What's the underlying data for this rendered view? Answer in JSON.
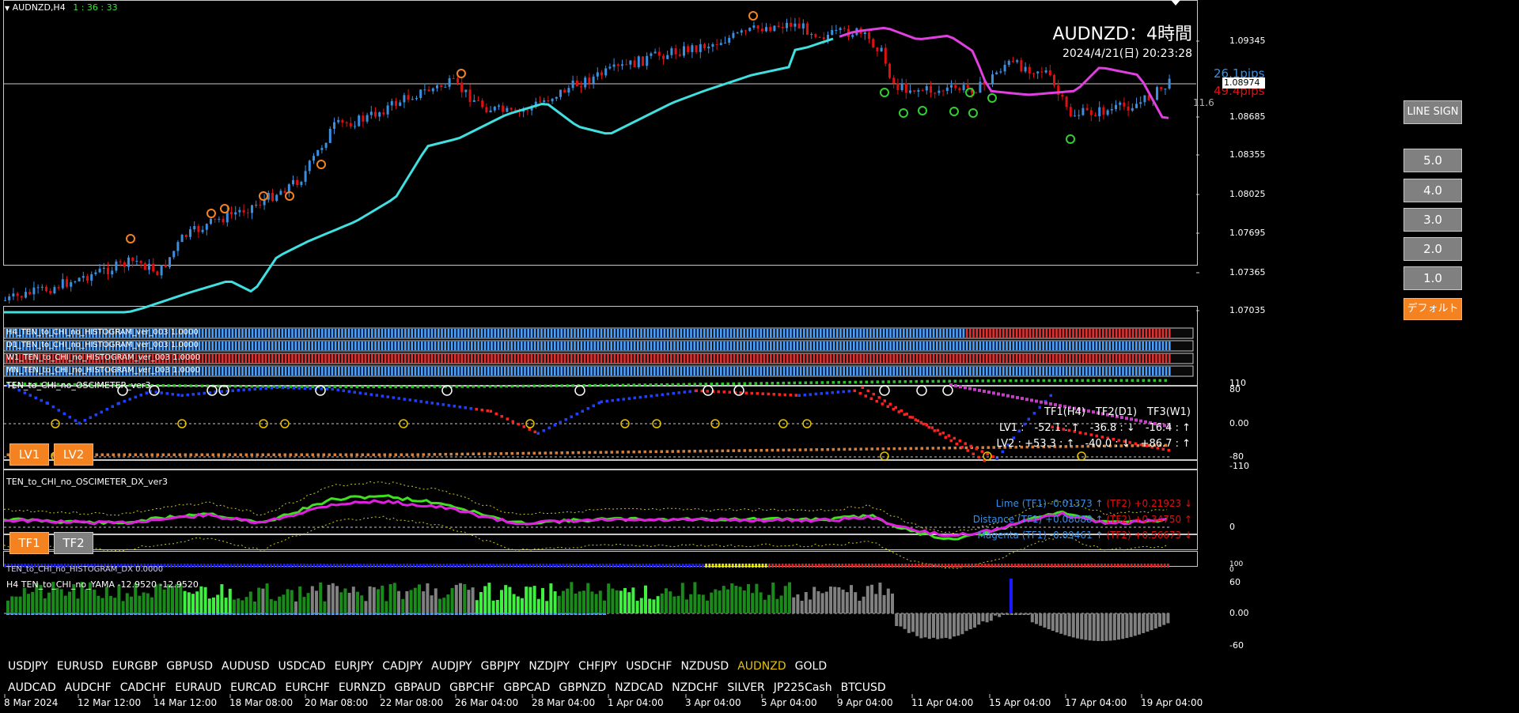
{
  "window": {
    "symbol_tf": "AUDNZD,H4",
    "countdown": "1 : 36 : 33"
  },
  "header": {
    "title": "AUDNZD：4時間",
    "datetime": "2024/4/21(日) 20:23:28"
  },
  "pips": {
    "up": "26.1pips",
    "down": "49.4pips",
    "small": "11.6"
  },
  "price_axis": [
    "1.09345",
    "1.08974",
    "1.08685",
    "1.08355",
    "1.08025",
    "1.07695",
    "1.07365",
    "1.07035"
  ],
  "current_price": "1.08974",
  "buttons": {
    "line_sign": "LINE SIGN",
    "levels": [
      "5.0",
      "4.0",
      "3.0",
      "2.0",
      "1.0"
    ],
    "default": "デフォルト",
    "lv1": "LV1",
    "lv2": "LV2",
    "tf1": "TF1",
    "tf2": "TF2"
  },
  "histograms": [
    {
      "label": "H4_TEN_to_CHI_no_HISTOGRAM_ver_003 1.0000"
    },
    {
      "label": "D1_TEN_to_CHI_no_HISTOGRAM_ver_003 1.0000"
    },
    {
      "label": "W1_TEN_to_CHI_no_HISTOGRAM_ver_003 1.0000"
    },
    {
      "label": "MN_TEN_to_CHI_no_HISTOGRAM_ver_003 1.0000"
    }
  ],
  "oscimeter": {
    "title": "TEN_to_CHI_no_OSCIMETER_ver3",
    "header": "TF1(H4)　TF2(D1)　TF3(W1)",
    "lv1": "LV1 :　-52.1 : ↑　-36.8 : ↓　-16.4 : ↑",
    "lv2": "LV2 : +53.3 : ↑　-40.0 : ↓　+86.7 : ↑",
    "axis": [
      "110",
      "80",
      "0.00",
      "-80",
      "-110"
    ]
  },
  "oscimeter_dx": {
    "title": "TEN_to_CHI_no_OSCIMETER_DX_ver3",
    "lime_a": "Lime (TF1) -0.01373 ↑",
    "lime_b": "(TF2) +0.21923 ↓",
    "dist_a": "Distance (TF1) +0.08088 ↑",
    "dist_b": "(TF2) +0.34750 ↑",
    "mag_a": "Magenta (TF1) -0.09461 ↑",
    "mag_b": "(TF2) +0.56673 ↓",
    "axis": [
      "0"
    ]
  },
  "histogram_dx": {
    "label": "TEN_to_CHI_no_HISTOGRAM_DX 0.0000",
    "axis": [
      "100",
      "0"
    ]
  },
  "yama": {
    "label": "H4  TEN_to_CHI_no_YAMA -12.9520 -12.9520",
    "axis": [
      "60",
      "0.00",
      "-60"
    ]
  },
  "symbols_row1": [
    "USDJPY",
    "EURUSD",
    "EURGBP",
    "GBPUSD",
    "AUDUSD",
    "USDCAD",
    "EURJPY",
    "CADJPY",
    "AUDJPY",
    "GBPJPY",
    "NZDJPY",
    "CHFJPY",
    "USDCHF",
    "NZDUSD",
    "AUDNZD",
    "GOLD"
  ],
  "symbols_row2": [
    "AUDCAD",
    "AUDCHF",
    "CADCHF",
    "EURAUD",
    "EURCAD",
    "EURCHF",
    "EURNZD",
    "GBPAUD",
    "GBPCHF",
    "GBPCAD",
    "GBPNZD",
    "NZDCAD",
    "NZDCHF",
    "SILVER",
    "JP225Cash",
    "BTCUSD"
  ],
  "active_symbol": "AUDNZD",
  "time_axis": [
    "8 Mar 2024",
    "12 Mar 12:00",
    "14 Mar 12:00",
    "18 Mar 08:00",
    "20 Mar 08:00",
    "22 Mar 08:00",
    "26 Mar 04:00",
    "28 Mar 04:00",
    "1 Apr 04:00",
    "3 Apr 04:00",
    "5 Apr 04:00",
    "9 Apr 04:00",
    "11 Apr 04:00",
    "15 Apr 04:00",
    "17 Apr 04:00",
    "19 Apr 04:00"
  ],
  "colors": {
    "up": "#3a8fe0",
    "down": "#e01010",
    "ma_up": "#40e0e0",
    "ma_down": "#e040e0",
    "grid": "#c8c8c8",
    "orange": "#f58220",
    "lime": "#40e020",
    "magenta": "#e020e0",
    "yellow": "#e6c200"
  }
}
